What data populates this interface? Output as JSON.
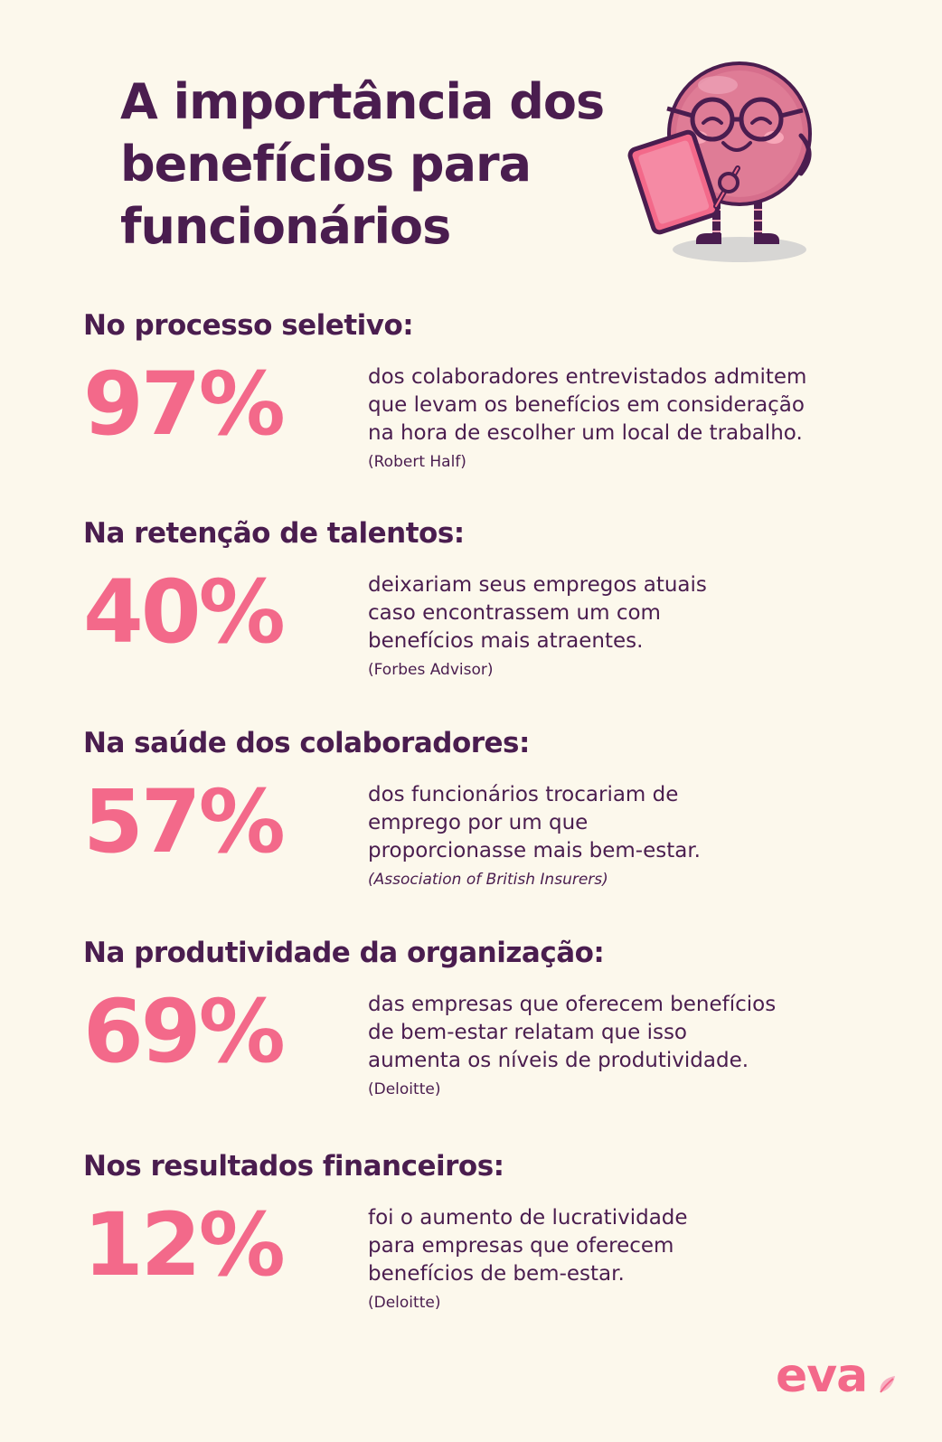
{
  "title": {
    "lines": [
      "A importância dos",
      "benefícios para",
      "funcionários"
    ]
  },
  "sections": [
    {
      "heading": "No processo seletivo:",
      "stat": "97%",
      "desc": [
        "dos colaboradores entrevistados admitem",
        "que levam os benefícios em consideração",
        "na hora de escolher um local de trabalho."
      ],
      "source": "(Robert Half)"
    },
    {
      "heading": "Na retenção de talentos:",
      "stat": "40%",
      "desc": [
        "deixariam seus empregos atuais",
        "caso encontrassem um com",
        "benefícios mais atraentes."
      ],
      "source": "(Forbes Advisor)"
    },
    {
      "heading": "Na saúde dos colaboradores:",
      "stat": "57%",
      "desc": [
        "dos funcionários trocariam de",
        "emprego por um que",
        "proporcionasse mais bem-estar."
      ],
      "source": "(Association of British Insurers)"
    },
    {
      "heading": "Na produtividade da organização:",
      "stat": "69%",
      "desc": [
        "das empresas que oferecem benefícios",
        "de bem-estar relatam que isso",
        "aumenta os níveis de produtividade."
      ],
      "source": "(Deloitte)"
    },
    {
      "heading": "Nos resultados financeiros:",
      "stat": "12%",
      "desc": [
        "foi o aumento de lucratividade",
        "para empresas que oferecem",
        "benefícios de bem-estar."
      ],
      "source": "(Deloitte)"
    }
  ],
  "logo": {
    "text": "eva"
  },
  "mascot": {
    "icon": "smiling-ball-character-with-glasses-and-tablet-icon"
  },
  "colors": {
    "background": "#fcf8ec",
    "text": "#4a1d4f",
    "accent": "#f3698a"
  }
}
